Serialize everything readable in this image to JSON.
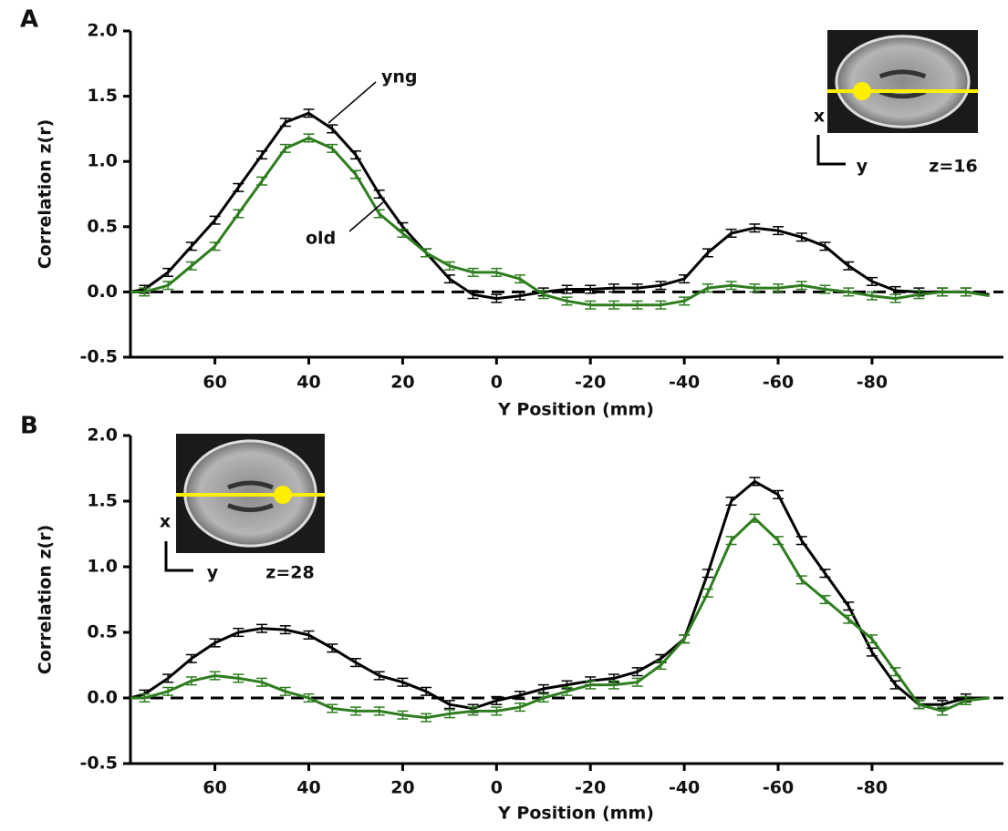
{
  "chart_data": [
    {
      "type": "line",
      "panel_label": "A",
      "xlabel": "Y Position (mm)",
      "ylabel": "Correlation z(r)",
      "x": [
        78,
        75,
        70,
        65,
        60,
        55,
        50,
        45,
        40,
        35,
        30,
        25,
        20,
        15,
        10,
        5,
        0,
        -5,
        -10,
        -15,
        -20,
        -25,
        -30,
        -35,
        -40,
        -45,
        -50,
        -55,
        -60,
        -65,
        -70,
        -75,
        -80,
        -85,
        -90,
        -95,
        -100,
        -105
      ],
      "series": [
        {
          "name": "yng",
          "color": "#000000",
          "error": 0.03,
          "values": [
            0,
            0.02,
            0.15,
            0.35,
            0.55,
            0.8,
            1.05,
            1.3,
            1.37,
            1.25,
            1.05,
            0.75,
            0.5,
            0.3,
            0.1,
            -0.02,
            -0.05,
            -0.03,
            0,
            0.02,
            0.02,
            0.03,
            0.03,
            0.05,
            0.1,
            0.3,
            0.45,
            0.49,
            0.47,
            0.42,
            0.35,
            0.2,
            0.08,
            0.01,
            0,
            0,
            0,
            -0.02
          ]
        },
        {
          "name": "old",
          "color": "#2e7d1f",
          "error": 0.03,
          "values": [
            0,
            0,
            0.05,
            0.2,
            0.35,
            0.6,
            0.85,
            1.1,
            1.18,
            1.1,
            0.9,
            0.6,
            0.45,
            0.3,
            0.2,
            0.15,
            0.15,
            0.1,
            -0.02,
            -0.07,
            -0.1,
            -0.1,
            -0.1,
            -0.1,
            -0.07,
            0.03,
            0.05,
            0.03,
            0.03,
            0.05,
            0.02,
            0,
            -0.03,
            -0.05,
            -0.02,
            0,
            0,
            -0.03
          ]
        }
      ],
      "xlim": [
        78,
        -108
      ],
      "xticks": [
        60,
        40,
        20,
        0,
        -20,
        -40,
        -60,
        -80
      ],
      "ylim": [
        -0.5,
        2.0
      ],
      "yticks": [
        -0.5,
        {
          "value": 0,
          "label": "0.0"
        },
        0.5,
        {
          "value": 1,
          "label": "1.0"
        },
        1.5,
        {
          "value": 2,
          "label": "2.0"
        }
      ],
      "reference_line": 0,
      "inset": {
        "x_label": "x",
        "y_label": "y",
        "slice_label": "z=16"
      }
    },
    {
      "type": "line",
      "panel_label": "B",
      "xlabel": "Y Position (mm)",
      "ylabel": "Correlation z(r)",
      "x": [
        78,
        75,
        70,
        65,
        60,
        55,
        50,
        45,
        40,
        35,
        30,
        25,
        20,
        15,
        10,
        5,
        0,
        -5,
        -10,
        -15,
        -20,
        -25,
        -30,
        -35,
        -40,
        -45,
        -50,
        -55,
        -60,
        -65,
        -70,
        -75,
        -80,
        -85,
        -90,
        -95,
        -100,
        -105
      ],
      "series": [
        {
          "name": "yng",
          "color": "#000000",
          "error": 0.03,
          "values": [
            0,
            0.03,
            0.15,
            0.3,
            0.42,
            0.5,
            0.53,
            0.52,
            0.48,
            0.38,
            0.27,
            0.17,
            0.12,
            0.05,
            -0.05,
            -0.08,
            -0.02,
            0.02,
            0.07,
            0.1,
            0.13,
            0.15,
            0.2,
            0.3,
            0.45,
            0.95,
            1.5,
            1.65,
            1.55,
            1.2,
            0.95,
            0.7,
            0.35,
            0.1,
            -0.05,
            -0.05,
            0,
            0
          ]
        },
        {
          "name": "old",
          "color": "#2e7d1f",
          "error": 0.03,
          "values": [
            0,
            0,
            0.05,
            0.13,
            0.17,
            0.15,
            0.12,
            0.05,
            0,
            -0.08,
            -0.1,
            -0.1,
            -0.13,
            -0.15,
            -0.12,
            -0.1,
            -0.1,
            -0.07,
            0,
            0.05,
            0.1,
            0.1,
            0.12,
            0.25,
            0.45,
            0.8,
            1.2,
            1.37,
            1.2,
            0.9,
            0.75,
            0.6,
            0.45,
            0.2,
            -0.05,
            -0.1,
            -0.02,
            0
          ]
        }
      ],
      "xlim": [
        78,
        -108
      ],
      "xticks": [
        60,
        40,
        20,
        0,
        -20,
        -40,
        -60,
        -80
      ],
      "ylim": [
        -0.5,
        2.0
      ],
      "yticks": [
        -0.5,
        {
          "value": 0,
          "label": "0.0"
        },
        0.5,
        {
          "value": 1,
          "label": "1.0"
        },
        1.5,
        {
          "value": 2,
          "label": "2.0"
        }
      ],
      "reference_line": 0,
      "inset": {
        "x_label": "x",
        "y_label": "y",
        "slice_label": "z=28"
      }
    }
  ]
}
